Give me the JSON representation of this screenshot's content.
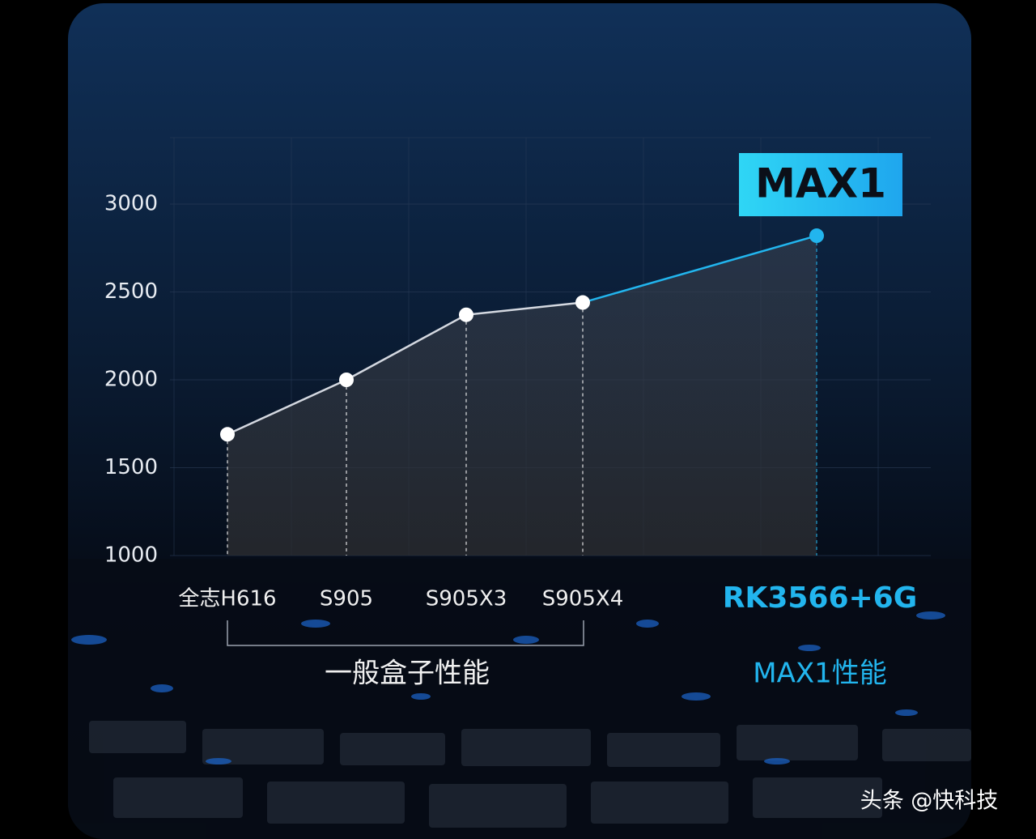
{
  "chart_data": {
    "type": "line",
    "badge": "MAX1",
    "categories": [
      "全志H616",
      "S905",
      "S905X3",
      "S905X4",
      "RK3566+6G"
    ],
    "values": [
      1690,
      2000,
      2370,
      2440,
      2820
    ],
    "color": "#d4d8e0",
    "point_colors": [
      "#ffffff",
      "#ffffff",
      "#ffffff",
      "#ffffff",
      "#22b5ee"
    ],
    "ylim": [
      1000,
      3000
    ],
    "yticks": [
      1000,
      1500,
      2000,
      2500,
      3000
    ],
    "grid": true,
    "groups": [
      {
        "label": "一般盒子性能"
      },
      {
        "label": "MAX1性能"
      }
    ],
    "watermark": "头条 @快科技"
  }
}
